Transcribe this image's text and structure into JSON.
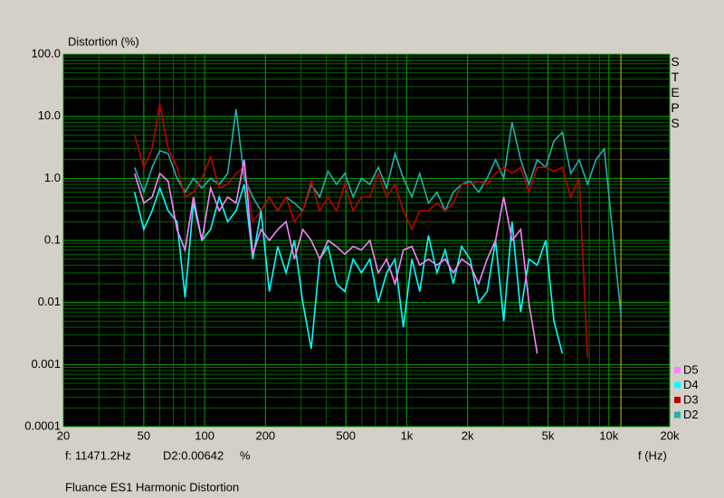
{
  "chart_data": {
    "type": "line",
    "title": "Fluance ES1 Harmonic Distortion",
    "y_label": "Distortion (%)",
    "x_label": "f (Hz)",
    "side_label": "STEPS",
    "log_x": true,
    "log_y": true,
    "grid": true,
    "minor_grid": true,
    "legend": "lower right",
    "xlim": [
      20,
      20000
    ],
    "ylim": [
      0.0001,
      100
    ],
    "xticks": [
      20,
      50,
      100,
      200,
      500,
      {
        "value": 1000,
        "label": "1k"
      },
      {
        "value": 2000,
        "label": "2k"
      },
      {
        "value": 5000,
        "label": "5k"
      },
      {
        "value": 10000,
        "label": "10k"
      },
      {
        "value": 20000,
        "label": "20k"
      }
    ],
    "yticks": [
      {
        "value": 100,
        "label": "100.0"
      },
      {
        "value": 10,
        "label": "10.0"
      },
      {
        "value": 1,
        "label": "1.0"
      },
      0.1,
      0.01,
      0.001,
      0.0001
    ],
    "cursor": {
      "x": 11471.2,
      "label": "f: 11471.2Hz",
      "readout": "D2:0.00642",
      "unit": "%"
    },
    "x": [
      45,
      50,
      55,
      60,
      66,
      73,
      80,
      88,
      97,
      107,
      118,
      130,
      143,
      157,
      173,
      190,
      209,
      230,
      253,
      278,
      306,
      337,
      371,
      408,
      449,
      494,
      543,
      597,
      657,
      723,
      795,
      875,
      962,
      1060,
      1160,
      1280,
      1410,
      1550,
      1700,
      1870,
      2060,
      2270,
      2500,
      2750,
      3020,
      3320,
      3660,
      4020,
      4420,
      4870,
      5350,
      5890,
      6480,
      7130,
      7840,
      8620,
      9490,
      10400,
      11500
    ],
    "series": [
      {
        "name": "D5",
        "color": "#ff80ff",
        "values": [
          1.2,
          0.4,
          0.5,
          1.2,
          0.9,
          0.15,
          0.07,
          0.5,
          0.1,
          0.7,
          0.3,
          0.5,
          0.4,
          2.0,
          0.06,
          0.15,
          0.1,
          0.15,
          0.2,
          0.05,
          0.15,
          0.1,
          0.05,
          0.1,
          0.08,
          0.06,
          0.08,
          0.07,
          0.1,
          0.03,
          0.05,
          0.02,
          0.07,
          0.08,
          0.04,
          0.05,
          0.04,
          0.05,
          0.03,
          0.05,
          0.04,
          0.02,
          0.05,
          0.1,
          0.5,
          0.1,
          0.15,
          0.01,
          0.0015,
          null,
          null,
          null,
          null,
          null,
          null,
          null,
          null,
          null,
          null
        ]
      },
      {
        "name": "D4",
        "color": "#00ffff",
        "values": [
          0.6,
          0.15,
          0.3,
          0.7,
          0.3,
          0.2,
          0.012,
          0.4,
          0.1,
          0.15,
          0.5,
          0.2,
          0.3,
          0.8,
          0.05,
          0.3,
          0.015,
          0.08,
          0.03,
          0.1,
          0.01,
          0.0018,
          0.05,
          0.08,
          0.02,
          0.015,
          0.05,
          0.03,
          0.05,
          0.01,
          0.03,
          0.05,
          0.004,
          0.05,
          0.015,
          0.12,
          0.03,
          0.07,
          0.02,
          0.08,
          0.05,
          0.01,
          0.015,
          0.1,
          0.005,
          0.2,
          0.007,
          0.05,
          0.04,
          0.1,
          0.005,
          0.0015,
          null,
          null,
          null,
          null,
          null,
          null,
          null
        ]
      },
      {
        "name": "D3",
        "color": "#c00000",
        "values": [
          5,
          1.5,
          3,
          16,
          3,
          1.5,
          0.5,
          0.6,
          1.0,
          2.2,
          0.7,
          0.8,
          1.2,
          1.5,
          0.2,
          0.3,
          0.5,
          0.3,
          0.5,
          0.2,
          0.3,
          0.9,
          0.3,
          0.5,
          0.3,
          0.8,
          0.3,
          0.5,
          0.5,
          1.2,
          0.5,
          0.8,
          0.3,
          0.15,
          0.3,
          0.3,
          0.4,
          0.3,
          0.4,
          0.8,
          0.8,
          0.9,
          0.8,
          1.2,
          1.5,
          1.2,
          1.5,
          0.6,
          1.5,
          1.5,
          1.3,
          1.5,
          0.5,
          1.0,
          0.0013,
          null,
          null,
          null,
          null
        ]
      },
      {
        "name": "D2",
        "color": "#20b0b0",
        "values": [
          1.5,
          0.6,
          1.5,
          2.8,
          2.5,
          1.0,
          0.6,
          1.0,
          0.7,
          1.0,
          0.8,
          1.2,
          13,
          1.0,
          0.5,
          0.3,
          0.5,
          0.3,
          0.5,
          0.4,
          0.3,
          0.8,
          0.5,
          1.3,
          0.8,
          1.2,
          0.5,
          1.0,
          0.8,
          1.5,
          0.7,
          2.5,
          1.0,
          0.5,
          1.2,
          0.4,
          0.6,
          0.3,
          0.6,
          0.8,
          0.9,
          0.6,
          1.0,
          2.0,
          1.0,
          8.0,
          2.0,
          0.8,
          2.0,
          1.5,
          4.0,
          5.5,
          1.2,
          2.0,
          0.8,
          2.0,
          3.0,
          0.15,
          0.006
        ]
      }
    ]
  }
}
